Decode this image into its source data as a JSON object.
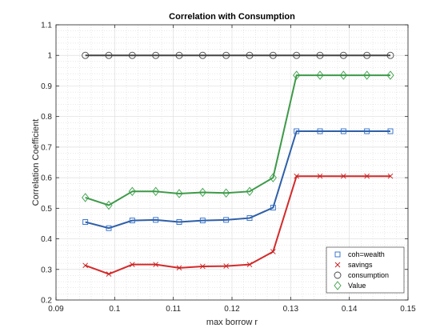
{
  "chart_data": {
    "type": "line",
    "title": "Correlation with Consumption",
    "xlabel": "max borrow r",
    "ylabel": "Correlation Coefficient",
    "xlim": [
      0.09,
      0.15
    ],
    "ylim": [
      0.2,
      1.1
    ],
    "xticks": [
      "0.09",
      "0.1",
      "0.11",
      "0.12",
      "0.13",
      "0.14",
      "0.15"
    ],
    "yticks": [
      "0.2",
      "0.3",
      "0.4",
      "0.5",
      "0.6",
      "0.7",
      "0.8",
      "0.9",
      "1",
      "1.1"
    ],
    "grid": true,
    "legend_placement": "bottom-right",
    "x": [
      0.095,
      0.099,
      0.103,
      0.107,
      0.111,
      0.115,
      0.119,
      0.123,
      0.127,
      0.131,
      0.135,
      0.139,
      0.143,
      0.147,
      0.151
    ],
    "series": [
      {
        "name": "coh=wealth",
        "marker": "square",
        "line_color": "#2e5fa8",
        "marker_color": "#2b6bc6",
        "values": [
          0.455,
          0.435,
          0.46,
          0.462,
          0.455,
          0.46,
          0.462,
          0.468,
          0.502,
          0.752,
          0.752,
          0.752,
          0.752,
          0.752,
          0.752
        ]
      },
      {
        "name": "savings",
        "marker": "x",
        "line_color": "#d42a2a",
        "marker_color": "#c81e1e",
        "values": [
          0.313,
          0.285,
          0.316,
          0.316,
          0.305,
          0.31,
          0.311,
          0.316,
          0.358,
          0.605,
          0.605,
          0.605,
          0.605,
          0.605,
          0.605
        ]
      },
      {
        "name": "consumption",
        "marker": "circle",
        "line_color": "#444444",
        "marker_color": "#444444",
        "values": [
          1.0,
          1.0,
          1.0,
          1.0,
          1.0,
          1.0,
          1.0,
          1.0,
          1.0,
          1.0,
          1.0,
          1.0,
          1.0,
          1.0,
          1.0
        ]
      },
      {
        "name": "Value",
        "marker": "diamond",
        "line_color": "#3d9a48",
        "marker_color": "#3aa048",
        "values": [
          0.535,
          0.51,
          0.555,
          0.555,
          0.548,
          0.552,
          0.55,
          0.555,
          0.6,
          0.935,
          0.935,
          0.935,
          0.935,
          0.935,
          0.935
        ]
      }
    ]
  }
}
